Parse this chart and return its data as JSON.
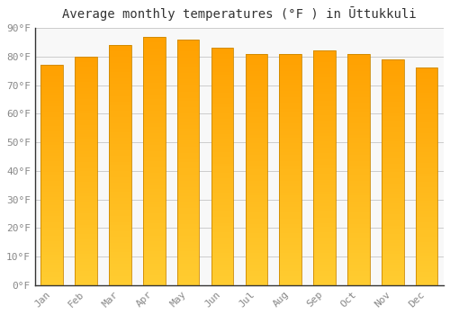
{
  "title": "Average monthly temperatures (°F ) in Ūttukkuli",
  "months": [
    "Jan",
    "Feb",
    "Mar",
    "Apr",
    "May",
    "Jun",
    "Jul",
    "Aug",
    "Sep",
    "Oct",
    "Nov",
    "Dec"
  ],
  "values": [
    77,
    80,
    84,
    87,
    86,
    83,
    81,
    81,
    82,
    81,
    79,
    76
  ],
  "bar_color_bottom": "#FFC020",
  "bar_color_top": "#FFB300",
  "bar_color_mid": "#FFCC44",
  "background_color": "#FFFFFF",
  "plot_bg_color": "#F8F8F8",
  "grid_color": "#CCCCCC",
  "bar_edge_color": "#CC8800",
  "ylim": [
    0,
    90
  ],
  "yticks": [
    0,
    10,
    20,
    30,
    40,
    50,
    60,
    70,
    80,
    90
  ],
  "ytick_labels": [
    "0°F",
    "10°F",
    "20°F",
    "30°F",
    "40°F",
    "50°F",
    "60°F",
    "70°F",
    "80°F",
    "90°F"
  ],
  "title_fontsize": 10,
  "tick_fontsize": 8,
  "bar_width": 0.65,
  "tick_color": "#888888",
  "title_color": "#333333"
}
